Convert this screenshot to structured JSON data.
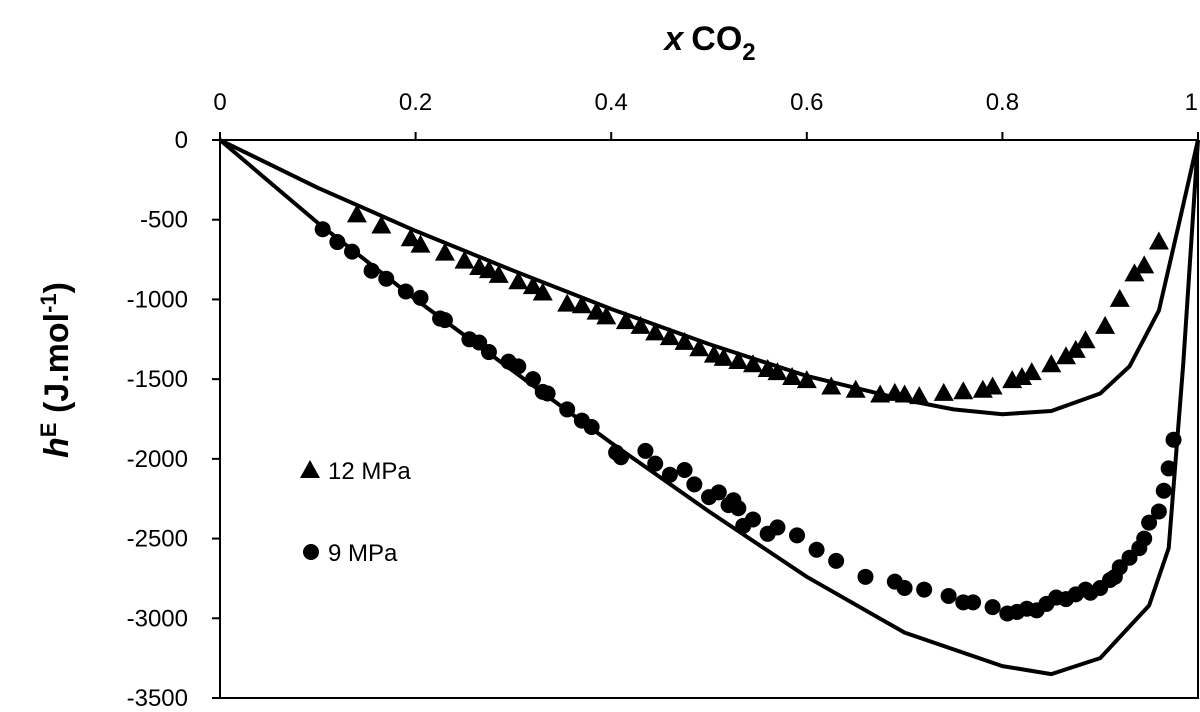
{
  "chart_data": {
    "type": "scatter",
    "xlabel": "x CO2",
    "ylabel": "hE (J.mol-1)",
    "xlabel_parts": {
      "var": "x",
      "species": "CO",
      "sub": "2"
    },
    "ylabel_parts": {
      "var": "h",
      "sup": "E",
      "unit": " (J.mol",
      "unit_sup": "-1",
      "close": ")"
    },
    "xlim": [
      0,
      1
    ],
    "ylim": [
      -3500,
      0
    ],
    "x_ticks": [
      0,
      0.2,
      0.4,
      0.6,
      0.8,
      1
    ],
    "x_tick_labels": [
      "0",
      "0.2",
      "0.4",
      "0.6",
      "0.8",
      "1"
    ],
    "y_ticks": [
      0,
      -500,
      -1000,
      -1500,
      -2000,
      -2500,
      -3000,
      -3500
    ],
    "y_tick_labels": [
      "0",
      "-500",
      "-1000",
      "-1500",
      "-2000",
      "-2500",
      "-3000",
      "-3500"
    ],
    "x_axis_position": "top",
    "grid": false,
    "legend": {
      "placement": "left-middle",
      "entries": [
        {
          "name": "12 MPa",
          "marker": "triangle"
        },
        {
          "name": "9 MPa",
          "marker": "circle"
        }
      ]
    },
    "series": [
      {
        "name": "12 MPa",
        "kind": "points",
        "marker": "triangle",
        "color": "#000000",
        "points": [
          [
            0.14,
            -460
          ],
          [
            0.165,
            -530
          ],
          [
            0.195,
            -610
          ],
          [
            0.205,
            -650
          ],
          [
            0.23,
            -700
          ],
          [
            0.25,
            -750
          ],
          [
            0.265,
            -790
          ],
          [
            0.275,
            -810
          ],
          [
            0.285,
            -840
          ],
          [
            0.305,
            -880
          ],
          [
            0.32,
            -910
          ],
          [
            0.33,
            -950
          ],
          [
            0.355,
            -1020
          ],
          [
            0.37,
            -1030
          ],
          [
            0.385,
            -1070
          ],
          [
            0.395,
            -1100
          ],
          [
            0.415,
            -1130
          ],
          [
            0.43,
            -1160
          ],
          [
            0.445,
            -1200
          ],
          [
            0.46,
            -1230
          ],
          [
            0.475,
            -1260
          ],
          [
            0.49,
            -1300
          ],
          [
            0.505,
            -1340
          ],
          [
            0.515,
            -1360
          ],
          [
            0.53,
            -1380
          ],
          [
            0.545,
            -1400
          ],
          [
            0.56,
            -1430
          ],
          [
            0.57,
            -1450
          ],
          [
            0.585,
            -1480
          ],
          [
            0.6,
            -1500
          ],
          [
            0.625,
            -1540
          ],
          [
            0.65,
            -1560
          ],
          [
            0.675,
            -1590
          ],
          [
            0.69,
            -1580
          ],
          [
            0.7,
            -1590
          ],
          [
            0.715,
            -1600
          ],
          [
            0.74,
            -1580
          ],
          [
            0.76,
            -1570
          ],
          [
            0.78,
            -1560
          ],
          [
            0.79,
            -1540
          ],
          [
            0.81,
            -1500
          ],
          [
            0.82,
            -1480
          ],
          [
            0.83,
            -1450
          ],
          [
            0.85,
            -1400
          ],
          [
            0.865,
            -1350
          ],
          [
            0.875,
            -1310
          ],
          [
            0.885,
            -1250
          ],
          [
            0.905,
            -1160
          ],
          [
            0.92,
            -990
          ],
          [
            0.935,
            -830
          ],
          [
            0.945,
            -780
          ],
          [
            0.96,
            -630
          ]
        ]
      },
      {
        "name": "9 MPa",
        "kind": "points",
        "marker": "circle",
        "color": "#000000",
        "points": [
          [
            0.105,
            -560
          ],
          [
            0.12,
            -640
          ],
          [
            0.135,
            -700
          ],
          [
            0.155,
            -820
          ],
          [
            0.17,
            -870
          ],
          [
            0.19,
            -950
          ],
          [
            0.205,
            -990
          ],
          [
            0.225,
            -1120
          ],
          [
            0.23,
            -1130
          ],
          [
            0.255,
            -1250
          ],
          [
            0.265,
            -1270
          ],
          [
            0.275,
            -1330
          ],
          [
            0.295,
            -1390
          ],
          [
            0.305,
            -1420
          ],
          [
            0.32,
            -1500
          ],
          [
            0.33,
            -1580
          ],
          [
            0.335,
            -1590
          ],
          [
            0.355,
            -1690
          ],
          [
            0.37,
            -1760
          ],
          [
            0.38,
            -1800
          ],
          [
            0.405,
            -1960
          ],
          [
            0.41,
            -1990
          ],
          [
            0.435,
            -1950
          ],
          [
            0.445,
            -2030
          ],
          [
            0.46,
            -2100
          ],
          [
            0.475,
            -2070
          ],
          [
            0.485,
            -2160
          ],
          [
            0.5,
            -2240
          ],
          [
            0.51,
            -2210
          ],
          [
            0.52,
            -2290
          ],
          [
            0.525,
            -2260
          ],
          [
            0.53,
            -2310
          ],
          [
            0.535,
            -2420
          ],
          [
            0.545,
            -2380
          ],
          [
            0.56,
            -2470
          ],
          [
            0.57,
            -2430
          ],
          [
            0.59,
            -2480
          ],
          [
            0.61,
            -2570
          ],
          [
            0.63,
            -2640
          ],
          [
            0.66,
            -2740
          ],
          [
            0.69,
            -2770
          ],
          [
            0.7,
            -2810
          ],
          [
            0.72,
            -2820
          ],
          [
            0.745,
            -2860
          ],
          [
            0.76,
            -2900
          ],
          [
            0.77,
            -2900
          ],
          [
            0.79,
            -2930
          ],
          [
            0.805,
            -2970
          ],
          [
            0.815,
            -2960
          ],
          [
            0.825,
            -2940
          ],
          [
            0.835,
            -2950
          ],
          [
            0.845,
            -2910
          ],
          [
            0.855,
            -2870
          ],
          [
            0.865,
            -2880
          ],
          [
            0.875,
            -2850
          ],
          [
            0.885,
            -2820
          ],
          [
            0.89,
            -2840
          ],
          [
            0.9,
            -2810
          ],
          [
            0.91,
            -2760
          ],
          [
            0.915,
            -2740
          ],
          [
            0.92,
            -2680
          ],
          [
            0.93,
            -2620
          ],
          [
            0.94,
            -2560
          ],
          [
            0.945,
            -2500
          ],
          [
            0.95,
            -2400
          ],
          [
            0.96,
            -2330
          ],
          [
            0.965,
            -2200
          ],
          [
            0.97,
            -2060
          ],
          [
            0.975,
            -1880
          ]
        ]
      },
      {
        "name": "",
        "kind": "line",
        "color": "#000000",
        "points": [
          [
            0,
            0
          ],
          [
            0.1,
            -300
          ],
          [
            0.2,
            -570
          ],
          [
            0.3,
            -820
          ],
          [
            0.4,
            -1060
          ],
          [
            0.5,
            -1280
          ],
          [
            0.6,
            -1480
          ],
          [
            0.7,
            -1630
          ],
          [
            0.75,
            -1690
          ],
          [
            0.8,
            -1720
          ],
          [
            0.85,
            -1700
          ],
          [
            0.9,
            -1590
          ],
          [
            0.93,
            -1420
          ],
          [
            0.96,
            -1070
          ],
          [
            0.98,
            -540
          ],
          [
            1.0,
            0
          ]
        ]
      },
      {
        "name": "",
        "kind": "line",
        "color": "#000000",
        "points": [
          [
            0,
            0
          ],
          [
            0.1,
            -520
          ],
          [
            0.2,
            -1000
          ],
          [
            0.3,
            -1450
          ],
          [
            0.4,
            -1900
          ],
          [
            0.5,
            -2330
          ],
          [
            0.6,
            -2740
          ],
          [
            0.7,
            -3090
          ],
          [
            0.8,
            -3300
          ],
          [
            0.85,
            -3350
          ],
          [
            0.9,
            -3250
          ],
          [
            0.95,
            -2920
          ],
          [
            0.97,
            -2560
          ],
          [
            0.985,
            -1400
          ],
          [
            1.0,
            0
          ]
        ]
      }
    ]
  }
}
